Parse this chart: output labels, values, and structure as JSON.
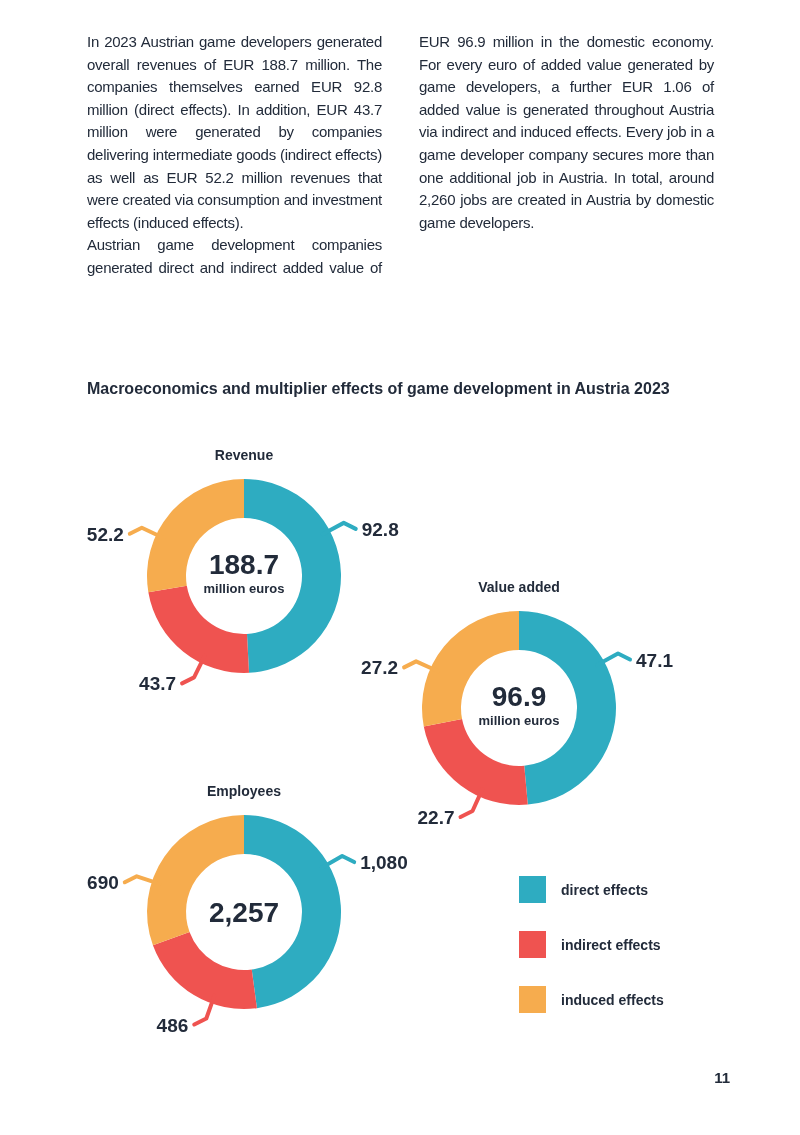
{
  "chart_data": [
    {
      "type": "other",
      "title": "Macroeconomics and multiplier effects of game development in Austria 2023",
      "annotations": [
        "In 2023 Austrian game developers generated overall revenues of EUR 188.7 million. The companies themselves earned EUR 92.8 million (direct effects). In addition, EUR 43.7 million were generated by companies delivering intermediate goods (indirect effects) as well as EUR 52.2 million revenues that were created via consumption and investment effects (induced effects).",
        "Austrian game development companies generated direct and indirect added value of EUR 96.9 million in the domestic economy. For every euro of added value generated by game developers, a further EUR 1.06 of added value is generated throughout Austria via indirect and induced effects. Every job in a game developer company secures more than one additional job in Austria. In total, around 2,260 jobs are created in Austria by domestic game developers.",
        "11"
      ]
    },
    {
      "type": "donut",
      "title": "Revenue",
      "categories": [
        null,
        null,
        null
      ],
      "values": [
        92.8,
        43.7,
        52.2
      ],
      "colors": [
        "#2eacc1",
        "#ef5350",
        "#f6ac4e"
      ],
      "data_labels": true,
      "annotations": [
        "188.7",
        "million euros"
      ]
    },
    {
      "type": "donut",
      "title": "Value added",
      "categories": [
        null,
        null,
        null
      ],
      "values": [
        47.1,
        22.7,
        27.2
      ],
      "colors": [
        "#2eacc1",
        "#ef5350",
        "#f6ac4e"
      ],
      "data_labels": true,
      "annotations": [
        "96.9",
        "million euros"
      ]
    },
    {
      "type": "donut",
      "title": "Employees",
      "categories": [
        "direct effects",
        "indirect effects",
        "induced effects"
      ],
      "values": [
        1080,
        486,
        690
      ],
      "colors": [
        "#2eacc1",
        "#ef5350",
        "#f6ac4e"
      ],
      "value_labels": [
        "1,080",
        "486",
        "690"
      ],
      "annotations": [
        "2,257"
      ],
      "legend": "right"
    }
  ]
}
